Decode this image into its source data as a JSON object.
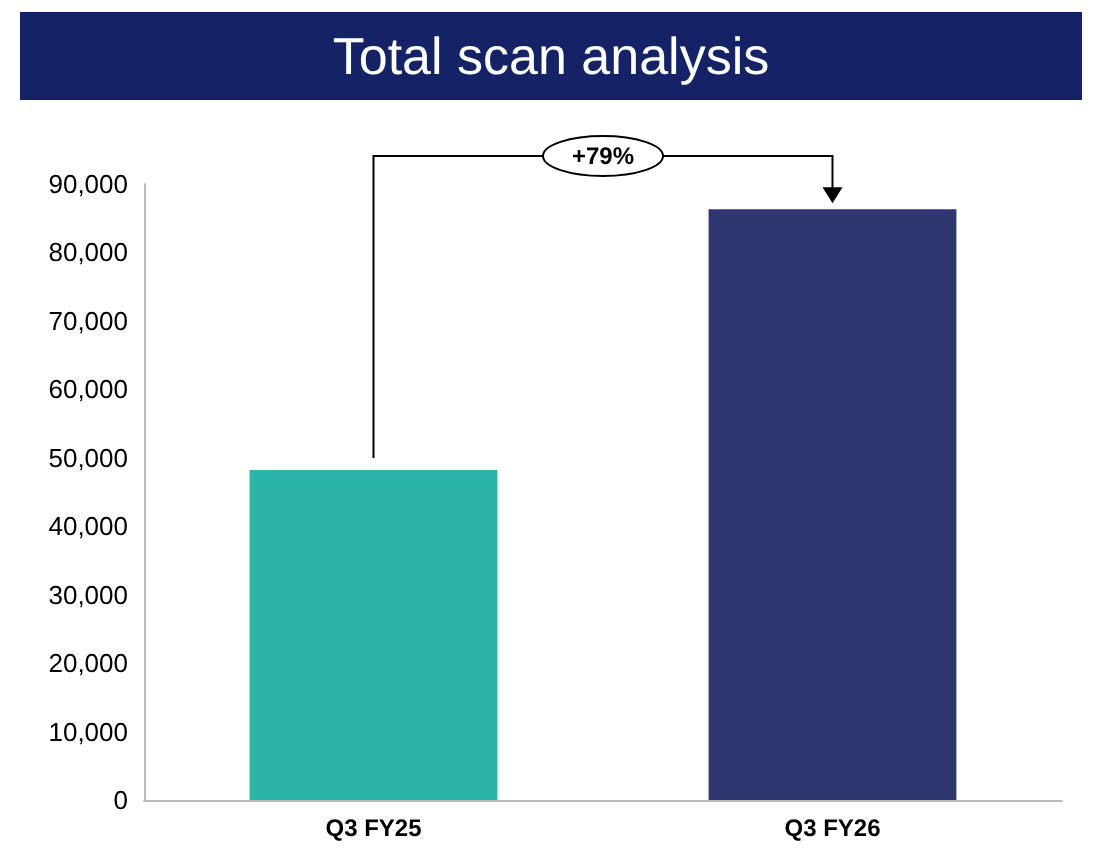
{
  "chart_data": {
    "type": "bar",
    "title": "Total scan analysis",
    "categories": [
      "Q3 FY25",
      "Q3 FY26"
    ],
    "values": [
      48200,
      86300
    ],
    "colors": [
      "#2ab5a8",
      "#2e3670"
    ],
    "ylim": [
      0,
      90000
    ],
    "yticks": [
      0,
      {
        "value": 10000,
        "label": "10,000"
      },
      {
        "value": 20000,
        "label": "20,000"
      },
      {
        "value": 30000,
        "label": "30,000"
      },
      {
        "value": 40000,
        "label": "40,000"
      },
      {
        "value": 50000,
        "label": "50,000"
      },
      {
        "value": 60000,
        "label": "60,000"
      },
      {
        "value": 70000,
        "label": "70,000"
      },
      {
        "value": 80000,
        "label": "80,000"
      },
      {
        "value": 90000,
        "label": "90,000"
      }
    ],
    "grid": false,
    "annotations": [
      "+79%"
    ]
  }
}
